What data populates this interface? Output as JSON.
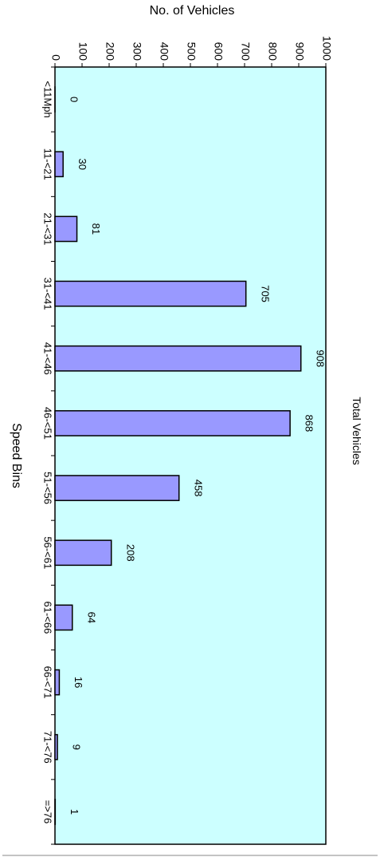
{
  "chart_data": {
    "type": "bar",
    "title": "Total Vehicles",
    "xlabel": "Speed Bins",
    "ylabel": "No. of Vehicles",
    "categories": [
      "<11Mph",
      "11-<21",
      "21-<31",
      "31-<41",
      "41-<46",
      "46-<51",
      "51-<56",
      "56-<61",
      "61-<66",
      "66-<71",
      "71-<76",
      "=>76"
    ],
    "values": [
      0,
      30,
      81,
      705,
      908,
      868,
      458,
      208,
      64,
      16,
      9,
      1
    ],
    "ylim": [
      0,
      1000
    ],
    "yticks": [
      "0",
      "100",
      "200",
      "300",
      "400",
      "500",
      "600",
      "700",
      "800",
      "900",
      "1000"
    ],
    "grid": false,
    "legend": "none",
    "orientation": "rotated 90 degrees clockwise",
    "colors": {
      "plot_background": "#ccffff",
      "bar_fill": "#9999ff",
      "bar_stroke": "#000000"
    }
  }
}
